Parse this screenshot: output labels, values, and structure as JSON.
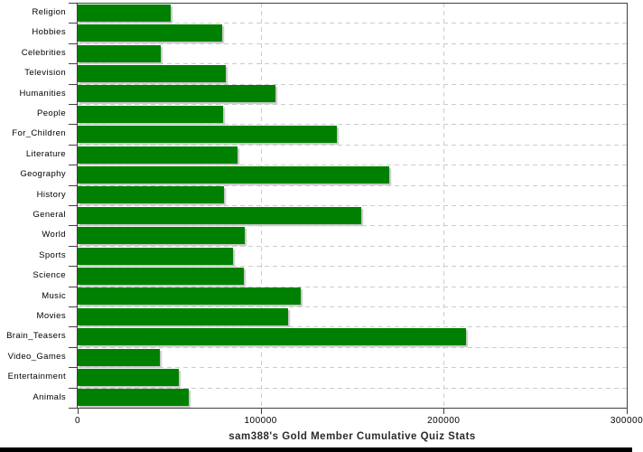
{
  "chart_data": {
    "type": "bar",
    "orientation": "horizontal",
    "title": "sam388's Gold Member Cumulative Quiz Stats",
    "categories": [
      "Religion",
      "Hobbies",
      "Celebrities",
      "Television",
      "Humanities",
      "People",
      "For_Children",
      "Literature",
      "Geography",
      "History",
      "General",
      "World",
      "Sports",
      "Science",
      "Music",
      "Movies",
      "Brain_Teasers",
      "Video_Games",
      "Entertainment",
      "Animals"
    ],
    "values": [
      51000,
      79000,
      45500,
      81000,
      108000,
      79500,
      141500,
      87500,
      170000,
      80000,
      155000,
      91500,
      85000,
      91000,
      122000,
      115000,
      212000,
      45000,
      55000,
      60500
    ],
    "xlim": [
      0,
      300000
    ],
    "x_ticks": [
      0,
      100000,
      200000,
      300000
    ],
    "x_tick_labels": [
      "0",
      "100000",
      "200000",
      "300000"
    ],
    "grid": "dashed",
    "legend_position": "none",
    "colors": {
      "bar": "#008000",
      "bar_shadow": "#c6c6c6",
      "grid": "#cccccc",
      "axis": "#404040",
      "tick_text": "#000000",
      "title_text": "#2b2b2b",
      "background": "#ffffff",
      "footer_bar": "#000000"
    }
  }
}
